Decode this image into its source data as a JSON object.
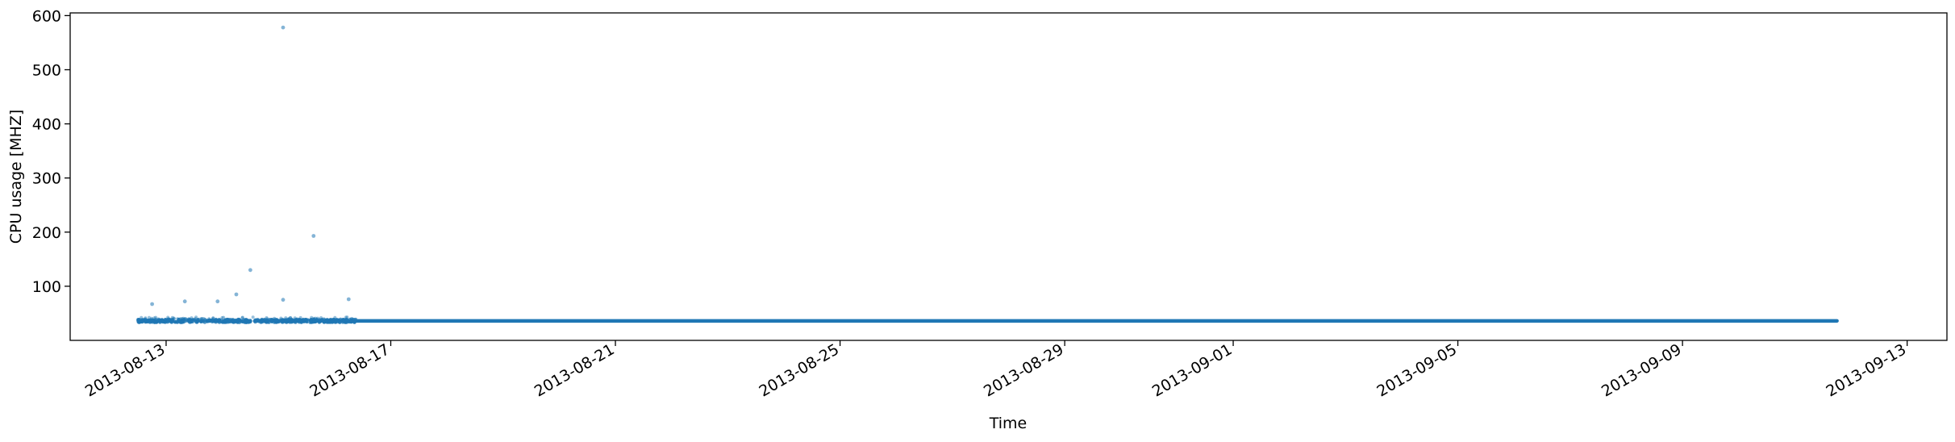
{
  "chart_data": {
    "type": "scatter",
    "title": "",
    "xlabel": "Time",
    "ylabel": "CPU usage [MHZ]",
    "xlim": [
      "2013-08-11T07:00",
      "2013-09-13T17:00"
    ],
    "ylim": [
      0,
      605
    ],
    "grid": false,
    "legend": "none",
    "x_ticks": [
      "2013-08-13",
      "2013-08-17",
      "2013-08-21",
      "2013-08-25",
      "2013-08-29",
      "2013-09-01",
      "2013-09-05",
      "2013-09-09",
      "2013-09-13"
    ],
    "y_ticks": [
      100,
      200,
      300,
      400,
      500,
      600
    ],
    "marker_color": "#1f77b4",
    "series": [
      {
        "baseline_band": {
          "x_start": "2013-08-12T12:00",
          "x_end": "2013-09-11T18:00",
          "y_min": 33,
          "y_max": 39,
          "y_typical": 36
        },
        "steady_segment": {
          "x_start": "2013-08-16T09:00",
          "x_end": "2013-09-11T18:00",
          "y": 36
        },
        "outliers": [
          {
            "x": "2013-08-12T18:00",
            "y": 67
          },
          {
            "x": "2013-08-13T08:00",
            "y": 72
          },
          {
            "x": "2013-08-13T22:00",
            "y": 72
          },
          {
            "x": "2013-08-14T06:00",
            "y": 85
          },
          {
            "x": "2013-08-14T12:00",
            "y": 130
          },
          {
            "x": "2013-08-15T02:00",
            "y": 75
          },
          {
            "x": "2013-08-15T02:00",
            "y": 578
          },
          {
            "x": "2013-08-15T15:00",
            "y": 193
          },
          {
            "x": "2013-08-16T06:00",
            "y": 76
          }
        ]
      }
    ]
  }
}
